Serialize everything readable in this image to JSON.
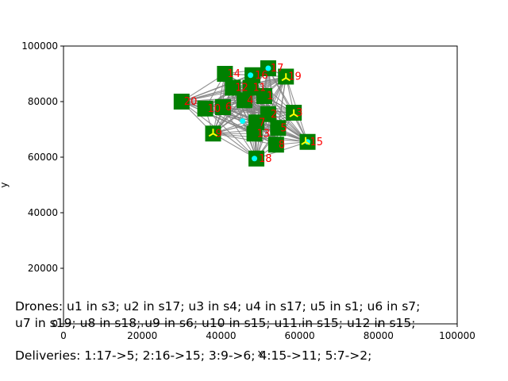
{
  "chart_data": {
    "type": "scatter",
    "xlabel": "x",
    "ylabel": "y",
    "xlim": [
      0,
      100000
    ],
    "ylim": [
      0,
      100000
    ],
    "xticks": [
      "0",
      "20000",
      "40000",
      "60000",
      "80000",
      "100000"
    ],
    "yticks": [
      "0",
      "20000",
      "40000",
      "60000",
      "80000",
      "100000"
    ],
    "grid": false,
    "stations": [
      {
        "id": "1",
        "x": 51000,
        "y": 82000
      },
      {
        "id": "2",
        "x": 52000,
        "y": 75500
      },
      {
        "id": "3",
        "x": 58500,
        "y": 76000
      },
      {
        "id": "4",
        "x": 46000,
        "y": 80500
      },
      {
        "id": "5",
        "x": 54500,
        "y": 70500
      },
      {
        "id": "6",
        "x": 40500,
        "y": 78000
      },
      {
        "id": "7",
        "x": 49000,
        "y": 72500
      },
      {
        "id": "8",
        "x": 54000,
        "y": 64500
      },
      {
        "id": "9",
        "x": 38000,
        "y": 68500
      },
      {
        "id": "10",
        "x": 36000,
        "y": 77500
      },
      {
        "id": "11",
        "x": 47500,
        "y": 85000
      },
      {
        "id": "12",
        "x": 43000,
        "y": 85000
      },
      {
        "id": "13",
        "x": 48500,
        "y": 68500
      },
      {
        "id": "14",
        "x": 41000,
        "y": 90000
      },
      {
        "id": "15",
        "x": 62000,
        "y": 65500
      },
      {
        "id": "16",
        "x": 48000,
        "y": 89500
      },
      {
        "id": "17",
        "x": 52000,
        "y": 92000
      },
      {
        "id": "18",
        "x": 49000,
        "y": 59500
      },
      {
        "id": "19",
        "x": 56500,
        "y": 89000
      },
      {
        "id": "20",
        "x": 30000,
        "y": 80000
      }
    ],
    "drones": [
      {
        "x": 48500,
        "y": 59500,
        "shape": "dot"
      },
      {
        "x": 52000,
        "y": 92000,
        "shape": "dot"
      },
      {
        "x": 47500,
        "y": 89500,
        "shape": "dot"
      },
      {
        "x": 62000,
        "y": 65500,
        "shape": "dot"
      },
      {
        "x": 45500,
        "y": 73000,
        "shape": "dot"
      },
      {
        "x": 38000,
        "y": 68500,
        "shape": "tri"
      },
      {
        "x": 56500,
        "y": 88500,
        "shape": "tri"
      },
      {
        "x": 61500,
        "y": 65500,
        "shape": "tri"
      },
      {
        "x": 58500,
        "y": 75500,
        "shape": "tri"
      }
    ],
    "colors": {
      "station": "#008000",
      "station_label": "#ff0000",
      "edge": "#808080",
      "drone_dot": "#00ffff",
      "drone_tri": "#ffff00"
    }
  },
  "captions": {
    "drones_line1": "Drones: u1 in s3; u2 in s17; u3 in s4; u4 in s17; u5 in s1; u6 in s7;",
    "drones_line2": "u7 in s19; u8 in s18; u9 in s6; u10 in s15; u11 in s15; u12 in s15;",
    "deliveries": "Deliveries: 1:17->5; 2:16->15; 3:9->6; 4:15->11; 5:7->2;"
  }
}
